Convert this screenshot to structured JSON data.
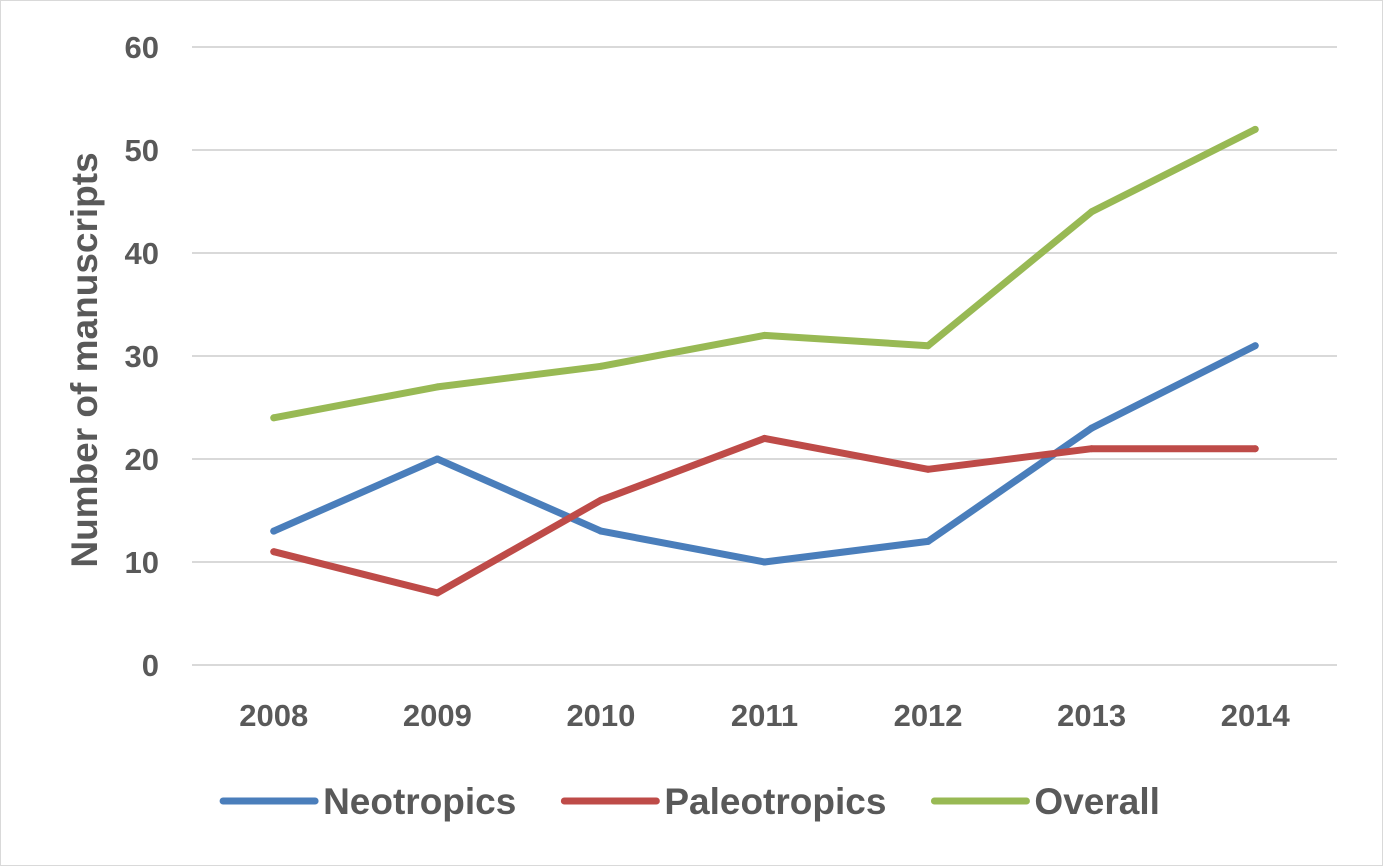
{
  "chart_data": {
    "type": "line",
    "categories": [
      "2008",
      "2009",
      "2010",
      "2011",
      "2012",
      "2013",
      "2014"
    ],
    "series": [
      {
        "name": "Neotropics",
        "color": "#4a7ebb",
        "values": [
          13,
          20,
          13,
          10,
          12,
          23,
          31
        ]
      },
      {
        "name": "Paleotropics",
        "color": "#be4b48",
        "values": [
          11,
          7,
          16,
          22,
          19,
          21,
          21
        ]
      },
      {
        "name": "Overall",
        "color": "#98b954",
        "values": [
          24,
          27,
          29,
          32,
          31,
          44,
          52
        ]
      }
    ],
    "ylabel": "Number of manuscripts",
    "xlabel": "",
    "ylim": [
      0,
      60
    ],
    "yticks": [
      0,
      10,
      20,
      30,
      40,
      50,
      60
    ],
    "grid": true,
    "gridline_color": "#d9d9d9",
    "legend": "bottom"
  }
}
